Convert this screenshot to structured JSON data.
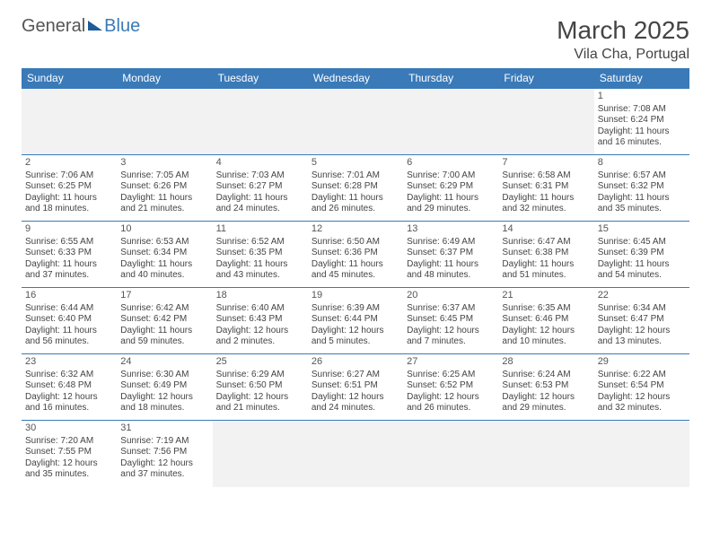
{
  "logo": {
    "part1": "General",
    "part2": "Blue"
  },
  "title": {
    "month": "March 2025",
    "location": "Vila Cha, Portugal"
  },
  "header_bg": "#3a7ab8",
  "border_color": "#3a7ab8",
  "weekdays": [
    "Sunday",
    "Monday",
    "Tuesday",
    "Wednesday",
    "Thursday",
    "Friday",
    "Saturday"
  ],
  "weeks": [
    [
      null,
      null,
      null,
      null,
      null,
      null,
      {
        "n": "1",
        "sr": "7:08 AM",
        "ss": "6:24 PM",
        "dl": "11 hours and 16 minutes."
      }
    ],
    [
      {
        "n": "2",
        "sr": "7:06 AM",
        "ss": "6:25 PM",
        "dl": "11 hours and 18 minutes."
      },
      {
        "n": "3",
        "sr": "7:05 AM",
        "ss": "6:26 PM",
        "dl": "11 hours and 21 minutes."
      },
      {
        "n": "4",
        "sr": "7:03 AM",
        "ss": "6:27 PM",
        "dl": "11 hours and 24 minutes."
      },
      {
        "n": "5",
        "sr": "7:01 AM",
        "ss": "6:28 PM",
        "dl": "11 hours and 26 minutes."
      },
      {
        "n": "6",
        "sr": "7:00 AM",
        "ss": "6:29 PM",
        "dl": "11 hours and 29 minutes."
      },
      {
        "n": "7",
        "sr": "6:58 AM",
        "ss": "6:31 PM",
        "dl": "11 hours and 32 minutes."
      },
      {
        "n": "8",
        "sr": "6:57 AM",
        "ss": "6:32 PM",
        "dl": "11 hours and 35 minutes."
      }
    ],
    [
      {
        "n": "9",
        "sr": "6:55 AM",
        "ss": "6:33 PM",
        "dl": "11 hours and 37 minutes."
      },
      {
        "n": "10",
        "sr": "6:53 AM",
        "ss": "6:34 PM",
        "dl": "11 hours and 40 minutes."
      },
      {
        "n": "11",
        "sr": "6:52 AM",
        "ss": "6:35 PM",
        "dl": "11 hours and 43 minutes."
      },
      {
        "n": "12",
        "sr": "6:50 AM",
        "ss": "6:36 PM",
        "dl": "11 hours and 45 minutes."
      },
      {
        "n": "13",
        "sr": "6:49 AM",
        "ss": "6:37 PM",
        "dl": "11 hours and 48 minutes."
      },
      {
        "n": "14",
        "sr": "6:47 AM",
        "ss": "6:38 PM",
        "dl": "11 hours and 51 minutes."
      },
      {
        "n": "15",
        "sr": "6:45 AM",
        "ss": "6:39 PM",
        "dl": "11 hours and 54 minutes."
      }
    ],
    [
      {
        "n": "16",
        "sr": "6:44 AM",
        "ss": "6:40 PM",
        "dl": "11 hours and 56 minutes."
      },
      {
        "n": "17",
        "sr": "6:42 AM",
        "ss": "6:42 PM",
        "dl": "11 hours and 59 minutes."
      },
      {
        "n": "18",
        "sr": "6:40 AM",
        "ss": "6:43 PM",
        "dl": "12 hours and 2 minutes."
      },
      {
        "n": "19",
        "sr": "6:39 AM",
        "ss": "6:44 PM",
        "dl": "12 hours and 5 minutes."
      },
      {
        "n": "20",
        "sr": "6:37 AM",
        "ss": "6:45 PM",
        "dl": "12 hours and 7 minutes."
      },
      {
        "n": "21",
        "sr": "6:35 AM",
        "ss": "6:46 PM",
        "dl": "12 hours and 10 minutes."
      },
      {
        "n": "22",
        "sr": "6:34 AM",
        "ss": "6:47 PM",
        "dl": "12 hours and 13 minutes."
      }
    ],
    [
      {
        "n": "23",
        "sr": "6:32 AM",
        "ss": "6:48 PM",
        "dl": "12 hours and 16 minutes."
      },
      {
        "n": "24",
        "sr": "6:30 AM",
        "ss": "6:49 PM",
        "dl": "12 hours and 18 minutes."
      },
      {
        "n": "25",
        "sr": "6:29 AM",
        "ss": "6:50 PM",
        "dl": "12 hours and 21 minutes."
      },
      {
        "n": "26",
        "sr": "6:27 AM",
        "ss": "6:51 PM",
        "dl": "12 hours and 24 minutes."
      },
      {
        "n": "27",
        "sr": "6:25 AM",
        "ss": "6:52 PM",
        "dl": "12 hours and 26 minutes."
      },
      {
        "n": "28",
        "sr": "6:24 AM",
        "ss": "6:53 PM",
        "dl": "12 hours and 29 minutes."
      },
      {
        "n": "29",
        "sr": "6:22 AM",
        "ss": "6:54 PM",
        "dl": "12 hours and 32 minutes."
      }
    ],
    [
      {
        "n": "30",
        "sr": "7:20 AM",
        "ss": "7:55 PM",
        "dl": "12 hours and 35 minutes."
      },
      {
        "n": "31",
        "sr": "7:19 AM",
        "ss": "7:56 PM",
        "dl": "12 hours and 37 minutes."
      },
      null,
      null,
      null,
      null,
      null
    ]
  ],
  "labels": {
    "sunrise": "Sunrise: ",
    "sunset": "Sunset: ",
    "daylight": "Daylight: "
  }
}
